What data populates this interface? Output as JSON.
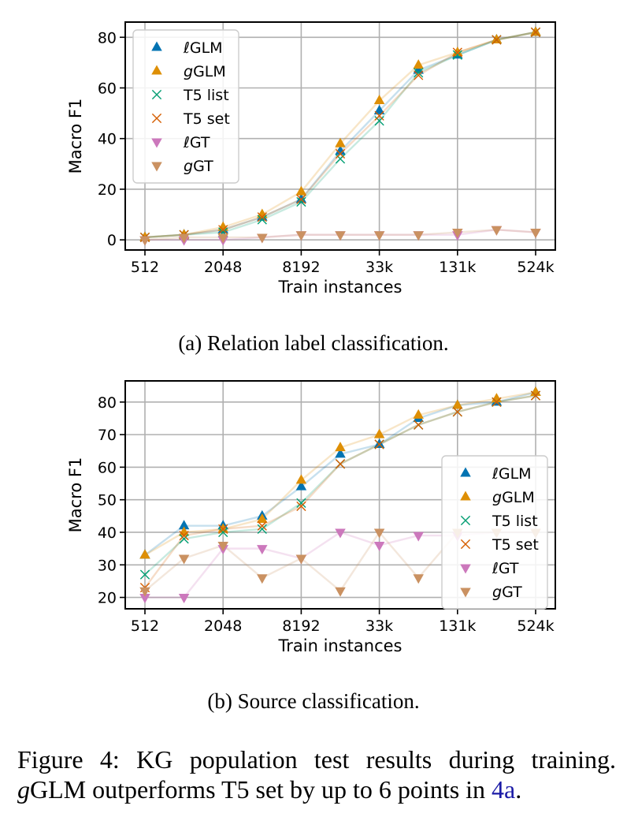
{
  "chart_data": [
    {
      "type": "line",
      "caption": "(a) Relation label classification.",
      "xlabel": "Train instances",
      "ylabel": "Macro F1",
      "x": [
        512,
        1024,
        2048,
        4096,
        8192,
        16384,
        32768,
        65536,
        131072,
        262144,
        524288
      ],
      "xticks": [
        512,
        2048,
        8192,
        32768,
        131072,
        524288
      ],
      "xtick_labels": [
        "512",
        "2048",
        "8192",
        "33k",
        "131k",
        "524k"
      ],
      "xscale": "log2",
      "ylim": [
        -4,
        86
      ],
      "yticks": [
        0,
        20,
        40,
        60,
        80
      ],
      "grid": true,
      "legend_position": "upper-left",
      "series": [
        {
          "name": "ℓGLM",
          "label_prefix": "ℓ",
          "label_rest": "GLM",
          "marker": "triangle-up",
          "color": "#0173b2",
          "values": [
            1,
            2,
            4,
            9,
            16,
            35,
            51,
            67,
            73,
            79,
            82
          ]
        },
        {
          "name": "gGLM",
          "label_prefix": "g",
          "label_rest": "GLM",
          "marker": "triangle-up",
          "color": "#de8f05",
          "values": [
            1,
            2,
            5,
            10,
            19,
            38,
            55,
            69,
            74,
            79,
            82
          ]
        },
        {
          "name": "T5 list",
          "label_prefix": "",
          "label_rest": "T5 list",
          "marker": "x",
          "color": "#029e73",
          "values": [
            1,
            2,
            3,
            8,
            15,
            32,
            47,
            66,
            73,
            79,
            82
          ]
        },
        {
          "name": "T5 set",
          "label_prefix": "",
          "label_rest": "T5 set",
          "marker": "x",
          "color": "#d55e00",
          "values": [
            1,
            2,
            4,
            9,
            16,
            34,
            49,
            65,
            74,
            79,
            82
          ]
        },
        {
          "name": "ℓGT",
          "label_prefix": "ℓ",
          "label_rest": "GT",
          "marker": "triangle-down",
          "color": "#cc78bc",
          "values": [
            0,
            0,
            0,
            1,
            2,
            2,
            2,
            2,
            2,
            4,
            3
          ]
        },
        {
          "name": "gGT",
          "label_prefix": "g",
          "label_rest": "GT",
          "marker": "triangle-down",
          "color": "#ca9161",
          "values": [
            0,
            1,
            1,
            1,
            2,
            2,
            2,
            2,
            3,
            4,
            3
          ]
        }
      ]
    },
    {
      "type": "line",
      "caption": "(b) Source classification.",
      "xlabel": "Train instances",
      "ylabel": "Macro F1",
      "x": [
        512,
        1024,
        2048,
        4096,
        8192,
        16384,
        32768,
        65536,
        131072,
        262144,
        524288
      ],
      "xticks": [
        512,
        2048,
        8192,
        32768,
        131072,
        524288
      ],
      "xtick_labels": [
        "512",
        "2048",
        "8192",
        "33k",
        "131k",
        "524k"
      ],
      "xscale": "log2",
      "ylim": [
        16.5,
        86.5
      ],
      "yticks": [
        20,
        30,
        40,
        50,
        60,
        70,
        80
      ],
      "grid": true,
      "legend_position": "lower-right",
      "series": [
        {
          "name": "ℓGLM",
          "label_prefix": "ℓ",
          "label_rest": "GLM",
          "marker": "triangle-up",
          "color": "#0173b2",
          "values": [
            33,
            42,
            42,
            45,
            54,
            64,
            67,
            75,
            79,
            80,
            83
          ]
        },
        {
          "name": "gGLM",
          "label_prefix": "g",
          "label_rest": "GLM",
          "marker": "triangle-up",
          "color": "#de8f05",
          "values": [
            33,
            40,
            41,
            44,
            56,
            66,
            70,
            76,
            79,
            81,
            83
          ]
        },
        {
          "name": "T5 list",
          "label_prefix": "",
          "label_rest": "T5 list",
          "marker": "x",
          "color": "#029e73",
          "values": [
            27,
            38,
            40,
            41,
            49,
            61,
            67,
            73,
            77,
            80,
            82
          ]
        },
        {
          "name": "T5 set",
          "label_prefix": "",
          "label_rest": "T5 set",
          "marker": "x",
          "color": "#d55e00",
          "values": [
            23,
            39,
            41,
            42,
            48,
            61,
            67,
            73,
            77,
            80,
            82
          ]
        },
        {
          "name": "ℓGT",
          "label_prefix": "ℓ",
          "label_rest": "GT",
          "marker": "triangle-down",
          "color": "#cc78bc",
          "values": [
            20,
            20,
            35,
            35,
            32,
            40,
            36,
            39,
            39,
            40,
            40
          ]
        },
        {
          "name": "gGT",
          "label_prefix": "g",
          "label_rest": "GT",
          "marker": "triangle-down",
          "color": "#ca9161",
          "values": [
            22,
            32,
            36,
            26,
            32,
            22,
            40,
            26,
            40,
            40,
            40
          ]
        }
      ]
    }
  ],
  "figure_caption": {
    "line1": "Figure 4:  KG population test results during training.",
    "line2_italic": "g",
    "line2_main": "GLM outperforms T5 set by up to 6 points in ",
    "line2_ref": "4a",
    "line2_end": "."
  }
}
